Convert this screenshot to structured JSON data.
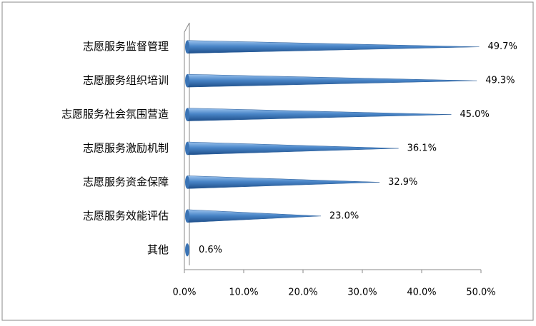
{
  "chart_data": {
    "type": "cone-bar",
    "categories": [
      "志愿服务监督管理",
      "志愿服务组织培训",
      "志愿服务社会氛围营造",
      "志愿服务激励机制",
      "志愿服务资金保障",
      "志愿服务效能评估",
      "其他"
    ],
    "values": [
      49.7,
      49.3,
      45.0,
      36.1,
      32.9,
      23.0,
      0.6
    ],
    "value_labels": [
      "49.7%",
      "49.3%",
      "45.0%",
      "36.1%",
      "32.9%",
      "23.0%",
      "0.6%"
    ],
    "color": "#4a86c8",
    "xlim": [
      0,
      50
    ],
    "xticks": [
      {
        "value": 0,
        "label": "0.0%"
      },
      {
        "value": 10,
        "label": "10.0%"
      },
      {
        "value": 20,
        "label": "20.0%"
      },
      {
        "value": 30,
        "label": "30.0%"
      },
      {
        "value": 40,
        "label": "40.0%"
      },
      {
        "value": 50,
        "label": "50.0%"
      }
    ]
  }
}
